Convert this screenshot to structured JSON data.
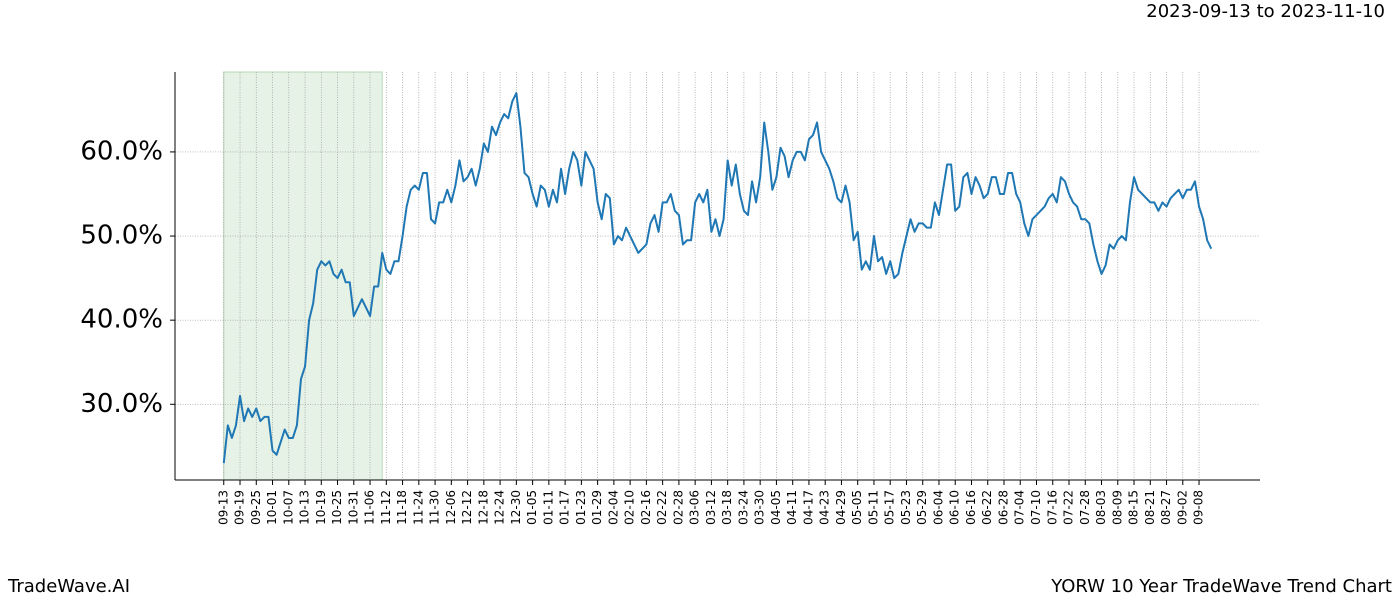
{
  "chart_data": {
    "type": "line",
    "title": "2023-09-13 to 2023-11-10",
    "brand": "TradeWave.AI",
    "footer": "YORW 10 Year TradeWave Trend Chart",
    "highlight": {
      "start": 0,
      "end": 39
    },
    "color": "#1f77b4",
    "grid": true,
    "xlim": [
      -12,
      255
    ],
    "ylim": [
      21,
      69.5
    ],
    "yticks": [
      {
        "value": 30,
        "label": "30.0%"
      },
      {
        "value": 40,
        "label": "40.0%"
      },
      {
        "value": 50,
        "label": "50.0%"
      },
      {
        "value": 60,
        "label": "60.0%"
      }
    ],
    "xticks": [
      {
        "value": 0,
        "label": "09-13"
      },
      {
        "value": 4,
        "label": "09-19"
      },
      {
        "value": 8,
        "label": "09-25"
      },
      {
        "value": 12,
        "label": "10-01"
      },
      {
        "value": 16,
        "label": "10-07"
      },
      {
        "value": 20,
        "label": "10-13"
      },
      {
        "value": 24,
        "label": "10-19"
      },
      {
        "value": 28,
        "label": "10-25"
      },
      {
        "value": 32,
        "label": "10-31"
      },
      {
        "value": 36,
        "label": "11-06"
      },
      {
        "value": 40,
        "label": "11-12"
      },
      {
        "value": 44,
        "label": "11-18"
      },
      {
        "value": 48,
        "label": "11-24"
      },
      {
        "value": 52,
        "label": "11-30"
      },
      {
        "value": 56,
        "label": "12-06"
      },
      {
        "value": 60,
        "label": "12-12"
      },
      {
        "value": 64,
        "label": "12-18"
      },
      {
        "value": 68,
        "label": "12-24"
      },
      {
        "value": 72,
        "label": "12-30"
      },
      {
        "value": 76,
        "label": "01-05"
      },
      {
        "value": 80,
        "label": "01-11"
      },
      {
        "value": 84,
        "label": "01-17"
      },
      {
        "value": 88,
        "label": "01-23"
      },
      {
        "value": 92,
        "label": "01-29"
      },
      {
        "value": 96,
        "label": "02-04"
      },
      {
        "value": 100,
        "label": "02-10"
      },
      {
        "value": 104,
        "label": "02-16"
      },
      {
        "value": 108,
        "label": "02-22"
      },
      {
        "value": 112,
        "label": "02-28"
      },
      {
        "value": 116,
        "label": "03-06"
      },
      {
        "value": 120,
        "label": "03-12"
      },
      {
        "value": 124,
        "label": "03-18"
      },
      {
        "value": 128,
        "label": "03-24"
      },
      {
        "value": 132,
        "label": "03-30"
      },
      {
        "value": 136,
        "label": "04-05"
      },
      {
        "value": 140,
        "label": "04-11"
      },
      {
        "value": 144,
        "label": "04-17"
      },
      {
        "value": 148,
        "label": "04-23"
      },
      {
        "value": 152,
        "label": "04-29"
      },
      {
        "value": 156,
        "label": "05-05"
      },
      {
        "value": 160,
        "label": "05-11"
      },
      {
        "value": 164,
        "label": "05-17"
      },
      {
        "value": 168,
        "label": "05-23"
      },
      {
        "value": 172,
        "label": "05-29"
      },
      {
        "value": 176,
        "label": "06-04"
      },
      {
        "value": 180,
        "label": "06-10"
      },
      {
        "value": 184,
        "label": "06-16"
      },
      {
        "value": 188,
        "label": "06-22"
      },
      {
        "value": 192,
        "label": "06-28"
      },
      {
        "value": 196,
        "label": "07-04"
      },
      {
        "value": 200,
        "label": "07-10"
      },
      {
        "value": 204,
        "label": "07-16"
      },
      {
        "value": 208,
        "label": "07-22"
      },
      {
        "value": 212,
        "label": "07-28"
      },
      {
        "value": 216,
        "label": "08-03"
      },
      {
        "value": 220,
        "label": "08-09"
      },
      {
        "value": 224,
        "label": "08-15"
      },
      {
        "value": 228,
        "label": "08-21"
      },
      {
        "value": 232,
        "label": "08-27"
      },
      {
        "value": 236,
        "label": "09-02"
      },
      {
        "value": 240,
        "label": "09-08"
      }
    ],
    "values": [
      23,
      27.5,
      26,
      27.5,
      31,
      28,
      29.5,
      28.5,
      29.5,
      28,
      28.5,
      28.5,
      24.5,
      24,
      25.5,
      27,
      26,
      26,
      27.5,
      33,
      34.5,
      40,
      42,
      46,
      47,
      46.5,
      47,
      45.5,
      45,
      46,
      44.5,
      44.5,
      40.5,
      41.5,
      42.5,
      41.5,
      40.5,
      44,
      44,
      48,
      46,
      45.5,
      47,
      47,
      50,
      53.5,
      55.5,
      56,
      55.5,
      57.5,
      57.5,
      52,
      51.5,
      54,
      54,
      55.5,
      54,
      56,
      59,
      56.5,
      57,
      58,
      56,
      58,
      61,
      60,
      63,
      62,
      63.5,
      64.5,
      64,
      66,
      67,
      63,
      57.5,
      57,
      55,
      53.5,
      56,
      55.5,
      53.5,
      55.5,
      54,
      58,
      55,
      58,
      60,
      59,
      56,
      60,
      59,
      58,
      54,
      52,
      55,
      54.5,
      49,
      50,
      49.5,
      51,
      50,
      49,
      48,
      48.5,
      49,
      51.5,
      52.5,
      50.5,
      54,
      54,
      55,
      53,
      52.5,
      49,
      49.5,
      49.5,
      54,
      55,
      54,
      55.5,
      50.5,
      52,
      50,
      52,
      59,
      56,
      58.5,
      55,
      53,
      52.5,
      56.5,
      54,
      57,
      63.5,
      60,
      55.5,
      57,
      60.5,
      59.5,
      57,
      59,
      60,
      60,
      59,
      61.5,
      62,
      63.5,
      60,
      59,
      58,
      56.5,
      54.5,
      54,
      56,
      54,
      49.5,
      50.5,
      46,
      47,
      46,
      50,
      47,
      47.5,
      45.5,
      47,
      45,
      45.5,
      48,
      50,
      52,
      50.5,
      51.5,
      51.5,
      51,
      51,
      54,
      52.5,
      55.5,
      58.5,
      58.5,
      53,
      53.5,
      57,
      57.5,
      55,
      57,
      56,
      54.5,
      55,
      57,
      57,
      55,
      55,
      57.5,
      57.5,
      55,
      54,
      51.5,
      50,
      52,
      52.5,
      53,
      53.5,
      54.5,
      55,
      54,
      57,
      56.5,
      55,
      54,
      53.5,
      52,
      52,
      51.5,
      49,
      47,
      45.5,
      46.5,
      49,
      48.5,
      49.5,
      50,
      49.5,
      54,
      57,
      55.5,
      55,
      54.5,
      54,
      54,
      53,
      54,
      53.5,
      54.5,
      55,
      55.5,
      54.5,
      55.5,
      55.5,
      56.5,
      53.5,
      52,
      49.5,
      48.5
    ]
  }
}
